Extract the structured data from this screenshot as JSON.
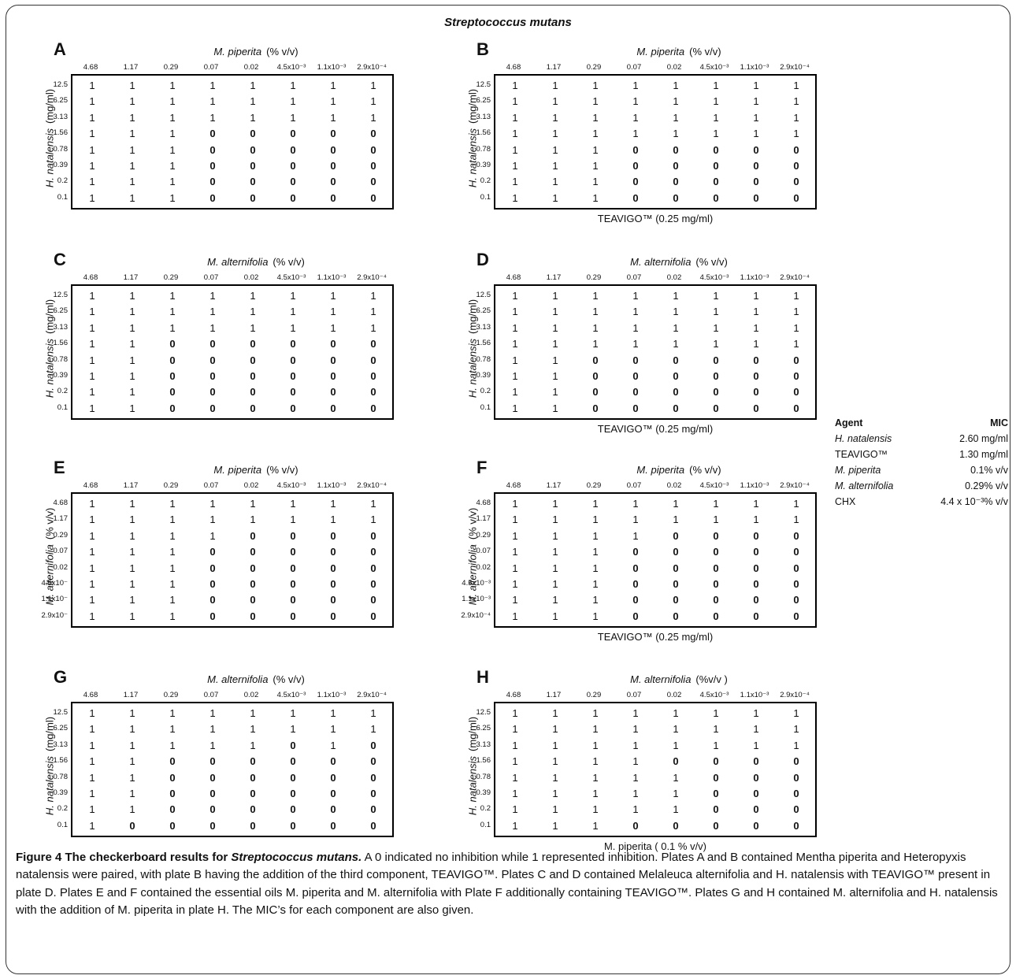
{
  "title": "Streptococcus mutans",
  "mic_table": {
    "header_agent": "Agent",
    "header_mic": "MIC",
    "rows": [
      {
        "agent": "H. natalensis",
        "italic": true,
        "mic": "2.60 mg/ml"
      },
      {
        "agent": "TEAVIGO™",
        "italic": false,
        "mic": "1.30 mg/ml"
      },
      {
        "agent": "M. piperita",
        "italic": true,
        "mic": "0.1% v/v"
      },
      {
        "agent": "M. alternifolia",
        "italic": true,
        "mic": "0.29% v/v"
      },
      {
        "agent": "CHX",
        "italic": false,
        "mic": "4.4 x 10⁻³% v/v"
      }
    ]
  },
  "panels": [
    {
      "label": "A",
      "x_agent": "M. piperita",
      "x_unit": "(% v/v)",
      "x_ticks": [
        "4.68",
        "1.17",
        "0.29",
        "0.07",
        "0.02",
        "4.5x10⁻³",
        "1.1x10⁻³",
        "2.9x10⁻⁴"
      ],
      "y_agent": "H. natalensis",
      "y_unit": "(mg/ml)",
      "y_ticks": [
        "12.5",
        "6.25",
        "3.13",
        "1.56",
        "0.78",
        "0.39",
        "0.2",
        "0.1"
      ],
      "third": "",
      "values": [
        [
          1,
          1,
          1,
          1,
          1,
          1,
          1,
          1
        ],
        [
          1,
          1,
          1,
          1,
          1,
          1,
          1,
          1
        ],
        [
          1,
          1,
          1,
          1,
          1,
          1,
          1,
          1
        ],
        [
          1,
          1,
          1,
          0,
          0,
          0,
          0,
          0
        ],
        [
          1,
          1,
          1,
          0,
          0,
          0,
          0,
          0
        ],
        [
          1,
          1,
          1,
          0,
          0,
          0,
          0,
          0
        ],
        [
          1,
          1,
          1,
          0,
          0,
          0,
          0,
          0
        ],
        [
          1,
          1,
          1,
          0,
          0,
          0,
          0,
          0
        ]
      ]
    },
    {
      "label": "B",
      "x_agent": "M. piperita",
      "x_unit": "(% v/v)",
      "x_ticks": [
        "4.68",
        "1.17",
        "0.29",
        "0.07",
        "0.02",
        "4.5x10⁻³",
        "1.1x10⁻³",
        "2.9x10⁻⁴"
      ],
      "y_agent": "H. natalensis",
      "y_unit": "(mg/ml)",
      "y_ticks": [
        "12.5",
        "6.25",
        "3.13",
        "1.56",
        "0.78",
        "0.39",
        "0.2",
        "0.1"
      ],
      "third": "TEAVIGO™ (0.25 mg/ml)",
      "values": [
        [
          1,
          1,
          1,
          1,
          1,
          1,
          1,
          1
        ],
        [
          1,
          1,
          1,
          1,
          1,
          1,
          1,
          1
        ],
        [
          1,
          1,
          1,
          1,
          1,
          1,
          1,
          1
        ],
        [
          1,
          1,
          1,
          1,
          1,
          1,
          1,
          1
        ],
        [
          1,
          1,
          1,
          0,
          0,
          0,
          0,
          0
        ],
        [
          1,
          1,
          1,
          0,
          0,
          0,
          0,
          0
        ],
        [
          1,
          1,
          1,
          0,
          0,
          0,
          0,
          0
        ],
        [
          1,
          1,
          1,
          0,
          0,
          0,
          0,
          0
        ]
      ]
    },
    {
      "label": "C",
      "x_agent": "M. alternifolia",
      "x_unit": "(% v/v)",
      "x_ticks": [
        "4.68",
        "1.17",
        "0.29",
        "0.07",
        "0.02",
        "4.5x10⁻³",
        "1.1x10⁻³",
        "2.9x10⁻⁴"
      ],
      "y_agent": "H. natalensis",
      "y_unit": "(mg/ml)",
      "y_ticks": [
        "12.5",
        "6.25",
        "3.13",
        "1.56",
        "0.78",
        "0.39",
        "0.2",
        "0.1"
      ],
      "third": "",
      "values": [
        [
          1,
          1,
          1,
          1,
          1,
          1,
          1,
          1
        ],
        [
          1,
          1,
          1,
          1,
          1,
          1,
          1,
          1
        ],
        [
          1,
          1,
          1,
          1,
          1,
          1,
          1,
          1
        ],
        [
          1,
          1,
          0,
          0,
          0,
          0,
          0,
          0
        ],
        [
          1,
          1,
          0,
          0,
          0,
          0,
          0,
          0
        ],
        [
          1,
          1,
          0,
          0,
          0,
          0,
          0,
          0
        ],
        [
          1,
          1,
          0,
          0,
          0,
          0,
          0,
          0
        ],
        [
          1,
          1,
          0,
          0,
          0,
          0,
          0,
          0
        ]
      ]
    },
    {
      "label": "D",
      "x_agent": "M. alternifolia",
      "x_unit": "(% v/v)",
      "x_ticks": [
        "4.68",
        "1.17",
        "0.29",
        "0.07",
        "0.02",
        "4.5x10⁻³",
        "1.1x10⁻³",
        "2.9x10⁻⁴"
      ],
      "y_agent": "H. natalensis",
      "y_unit": "(mg/ml)",
      "y_ticks": [
        "12.5",
        "6.25",
        "3.13",
        "1.56",
        "0.78",
        "0.39",
        "0.2",
        "0.1"
      ],
      "third": "TEAVIGO™ (0.25 mg/ml)",
      "values": [
        [
          1,
          1,
          1,
          1,
          1,
          1,
          1,
          1
        ],
        [
          1,
          1,
          1,
          1,
          1,
          1,
          1,
          1
        ],
        [
          1,
          1,
          1,
          1,
          1,
          1,
          1,
          1
        ],
        [
          1,
          1,
          1,
          1,
          1,
          1,
          1,
          1
        ],
        [
          1,
          1,
          0,
          0,
          0,
          0,
          0,
          0
        ],
        [
          1,
          1,
          0,
          0,
          0,
          0,
          0,
          0
        ],
        [
          1,
          1,
          0,
          0,
          0,
          0,
          0,
          0
        ],
        [
          1,
          1,
          0,
          0,
          0,
          0,
          0,
          0
        ]
      ]
    },
    {
      "label": "E",
      "x_agent": "M. piperita",
      "x_unit": "(% v/v)",
      "x_ticks": [
        "4.68",
        "1.17",
        "0.29",
        "0.07",
        "0.02",
        "4.5x10⁻³",
        "1.1x10⁻³",
        "2.9x10⁻⁴"
      ],
      "y_agent": "M. alternifolia",
      "y_unit": "(% v/v)",
      "y_ticks": [
        "4.68",
        "1.17",
        "0.29",
        "0.07",
        "0.02",
        "4.5x10⁻",
        "1.1x10⁻",
        "2.9x10⁻"
      ],
      "third": "",
      "values": [
        [
          1,
          1,
          1,
          1,
          1,
          1,
          1,
          1
        ],
        [
          1,
          1,
          1,
          1,
          1,
          1,
          1,
          1
        ],
        [
          1,
          1,
          1,
          1,
          0,
          0,
          0,
          0
        ],
        [
          1,
          1,
          1,
          0,
          0,
          0,
          0,
          0
        ],
        [
          1,
          1,
          1,
          0,
          0,
          0,
          0,
          0
        ],
        [
          1,
          1,
          1,
          0,
          0,
          0,
          0,
          0
        ],
        [
          1,
          1,
          1,
          0,
          0,
          0,
          0,
          0
        ],
        [
          1,
          1,
          1,
          0,
          0,
          0,
          0,
          0
        ]
      ]
    },
    {
      "label": "F",
      "x_agent": "M. piperita",
      "x_unit": "(% v/v)",
      "x_ticks": [
        "4.68",
        "1.17",
        "0.29",
        "0.07",
        "0.02",
        "4.5x10⁻³",
        "1.1x10⁻³",
        "2.9x10⁻⁴"
      ],
      "y_agent": "M. alternifolia",
      "y_unit": "(% v/v)",
      "y_ticks": [
        "4.68",
        "1.17",
        "0.29",
        "0.07",
        "0.02",
        "4.5x10⁻³",
        "1.1x10⁻³",
        "2.9x10⁻⁴"
      ],
      "third": "TEAVIGO™ (0.25 mg/ml)",
      "values": [
        [
          1,
          1,
          1,
          1,
          1,
          1,
          1,
          1
        ],
        [
          1,
          1,
          1,
          1,
          1,
          1,
          1,
          1
        ],
        [
          1,
          1,
          1,
          1,
          0,
          0,
          0,
          0
        ],
        [
          1,
          1,
          1,
          0,
          0,
          0,
          0,
          0
        ],
        [
          1,
          1,
          1,
          0,
          0,
          0,
          0,
          0
        ],
        [
          1,
          1,
          1,
          0,
          0,
          0,
          0,
          0
        ],
        [
          1,
          1,
          1,
          0,
          0,
          0,
          0,
          0
        ],
        [
          1,
          1,
          1,
          0,
          0,
          0,
          0,
          0
        ]
      ]
    },
    {
      "label": "G",
      "x_agent": "M. alternifolia",
      "x_unit": "(% v/v)",
      "x_ticks": [
        "4.68",
        "1.17",
        "0.29",
        "0.07",
        "0.02",
        "4.5x10⁻³",
        "1.1x10⁻³",
        "2.9x10⁻⁴"
      ],
      "y_agent": "H. natalensis",
      "y_unit": "(mg/ml)",
      "y_ticks": [
        "12.5",
        "6.25",
        "3.13",
        "1.56",
        "0.78",
        "0.39",
        "0.2",
        "0.1"
      ],
      "third": "",
      "values": [
        [
          1,
          1,
          1,
          1,
          1,
          1,
          1,
          1
        ],
        [
          1,
          1,
          1,
          1,
          1,
          1,
          1,
          1
        ],
        [
          1,
          1,
          1,
          1,
          1,
          0,
          1,
          0
        ],
        [
          1,
          1,
          0,
          0,
          0,
          0,
          0,
          0
        ],
        [
          1,
          1,
          0,
          0,
          0,
          0,
          0,
          0
        ],
        [
          1,
          1,
          0,
          0,
          0,
          0,
          0,
          0
        ],
        [
          1,
          1,
          0,
          0,
          0,
          0,
          0,
          0
        ],
        [
          1,
          0,
          0,
          0,
          0,
          0,
          0,
          0
        ]
      ]
    },
    {
      "label": "H",
      "x_agent": "M. alternifolia",
      "x_unit": "(%v/v )",
      "x_ticks": [
        "4.68",
        "1.17",
        "0.29",
        "0.07",
        "0.02",
        "4.5x10⁻³",
        "1.1x10⁻³",
        "2.9x10⁻⁴"
      ],
      "y_agent": "H. natalensis",
      "y_unit": "(mg/ml)",
      "y_ticks": [
        "12.5",
        "6.25",
        "3.13",
        "1.56",
        "0.78",
        "0.39",
        "0.2",
        "0.1"
      ],
      "third": "M. piperita ( 0.1 % v/v)",
      "values": [
        [
          1,
          1,
          1,
          1,
          1,
          1,
          1,
          1
        ],
        [
          1,
          1,
          1,
          1,
          1,
          1,
          1,
          1
        ],
        [
          1,
          1,
          1,
          1,
          1,
          1,
          1,
          1
        ],
        [
          1,
          1,
          1,
          1,
          0,
          0,
          0,
          0
        ],
        [
          1,
          1,
          1,
          1,
          1,
          0,
          0,
          0
        ],
        [
          1,
          1,
          1,
          1,
          1,
          0,
          0,
          0
        ],
        [
          1,
          1,
          1,
          1,
          1,
          0,
          0,
          0
        ],
        [
          1,
          1,
          1,
          0,
          0,
          0,
          0,
          0
        ]
      ]
    }
  ],
  "caption": {
    "lead": "Figure 4 The checkerboard results for ",
    "lead_italic": "Streptococcus mutans.",
    "body": " A 0 indicated no inhibition while 1 represented inhibition. Plates A and B contained Mentha piperita and Heteropyxis natalensis were paired, with plate B having the addition of the third component, TEAVIGO™. Plates C and D contained Melaleuca alternifolia and H. natalensis with TEAVIGO™ present in plate D. Plates E and F contained the essential oils M. piperita and M. alternifolia with Plate F additionally containing TEAVIGO™. Plates G and H contained M. alternifolia and H. natalensis with the addition of M. piperita in plate H. The MIC’s for each component are also given."
  }
}
